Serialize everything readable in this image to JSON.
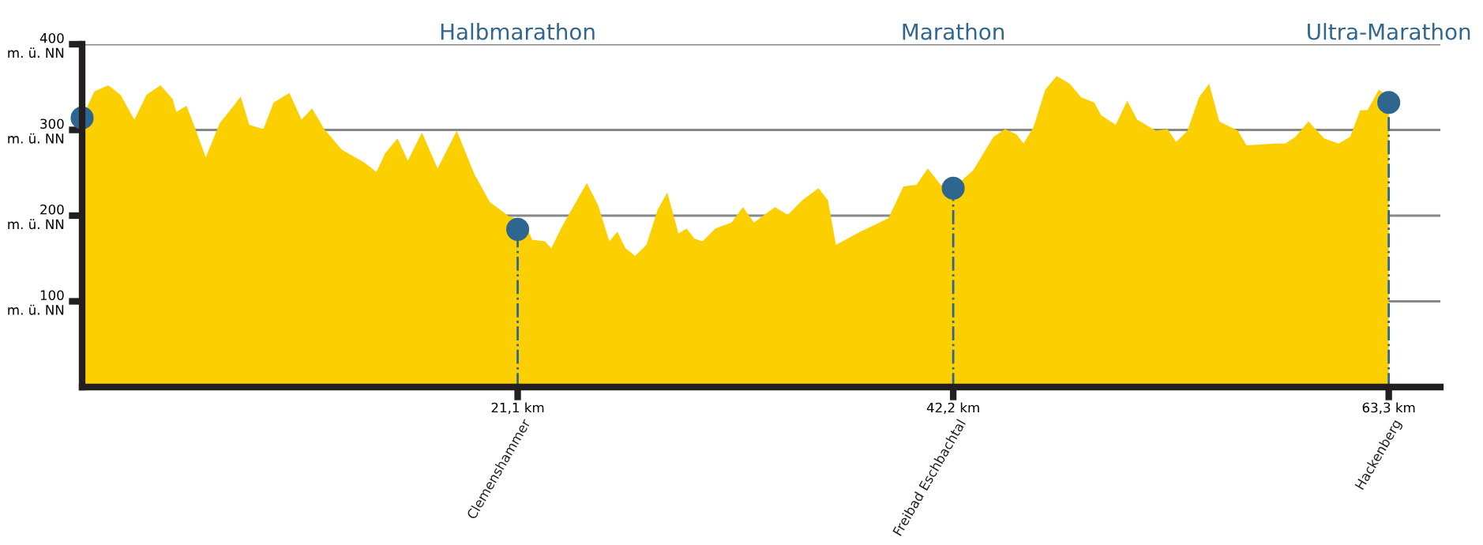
{
  "chart_data": {
    "type": "area",
    "x": [
      0,
      0.59,
      1.27,
      1.86,
      2.53,
      3.12,
      3.8,
      4.39,
      4.56,
      5.06,
      5.49,
      5.99,
      6.67,
      7.34,
      7.68,
      8.1,
      8.78,
      9.28,
      10.04,
      10.63,
      11.14,
      11.73,
      12.58,
      13.67,
      14.26,
      14.69,
      15.28,
      15.78,
      16.46,
      17.22,
      18.15,
      18.99,
      19.75,
      20.68,
      21.41,
      21.8,
      22.42,
      22.73,
      23.2,
      23.83,
      24.45,
      25.0,
      25.54,
      25.93,
      26.32,
      26.79,
      27.34,
      27.88,
      28.35,
      28.89,
      29.28,
      29.67,
      30.06,
      30.68,
      31.46,
      32.01,
      32.55,
      33.56,
      34.19,
      34.89,
      35.67,
      36.13,
      36.52,
      37.69,
      39.06,
      39.79,
      40.42,
      40.97,
      41.59,
      42.2,
      43.17,
      44.15,
      44.71,
      45.26,
      45.61,
      46.1,
      46.66,
      47.21,
      47.84,
      48.4,
      49.03,
      49.37,
      50.07,
      50.63,
      51.11,
      52.02,
      52.58,
      53.0,
      53.55,
      54.11,
      54.6,
      55.09,
      55.99,
      56.41,
      57.81,
      58.29,
      58.78,
      59.41,
      60.17,
      60.87,
      61.43,
      61.92,
      62.27,
      62.82,
      63.24,
      63.3
    ],
    "series": [
      {
        "color": "#fccf00",
        "values": [
          314,
          345,
          352,
          341,
          312,
          341,
          352,
          336,
          321,
          328,
          301,
          268,
          308,
          328,
          339,
          306,
          301,
          332,
          343,
          312,
          325,
          301,
          277,
          262,
          251,
          273,
          290,
          264,
          297,
          255,
          299,
          249,
          216,
          199,
          194,
          172,
          170,
          162,
          185,
          212,
          238,
          212,
          170,
          181,
          162,
          153,
          166,
          207,
          227,
          179,
          185,
          173,
          170,
          185,
          192,
          210,
          192,
          210,
          201,
          218,
          232,
          218,
          166,
          181,
          197,
          234,
          236,
          255,
          236,
          232,
          253,
          292,
          301,
          295,
          284,
          304,
          347,
          363,
          354,
          338,
          332,
          317,
          306,
          334,
          312,
          299,
          301,
          286,
          299,
          338,
          354,
          310,
          299,
          282,
          284,
          284,
          292,
          310,
          290,
          284,
          292,
          323,
          323,
          347,
          339,
          332
        ]
      },
      {
        "type": "lollipop",
        "color": "#2e6690",
        "x": [
          0,
          21.1,
          42.2,
          63.3
        ],
        "values": [
          314,
          184,
          232,
          332
        ],
        "marker": "circle",
        "line_style": "dashed"
      }
    ],
    "xlim": [
      0,
      65.8
    ],
    "xticks": [
      {
        "value": 21.1,
        "label": "21,1 km"
      },
      {
        "value": 42.2,
        "label": "42,2 km"
      },
      {
        "value": 63.3,
        "label": "63,3 km"
      }
    ],
    "ylim": [
      0,
      400
    ],
    "yticks": [
      {
        "value": 100,
        "label": "100\nm. ü. NN"
      },
      {
        "value": 200,
        "label": "200\nm. ü. NN"
      },
      {
        "value": 300,
        "label": "300\nm. ü. NN"
      },
      {
        "value": 400,
        "label": "400\nm. ü. NN"
      }
    ],
    "grid": "y",
    "annotations": [
      "Halbmarathon",
      "Marathon",
      "Ultra-Marathon",
      "Clemenshammer",
      "Freibad Eschbachtal",
      "Hackenberg"
    ]
  }
}
